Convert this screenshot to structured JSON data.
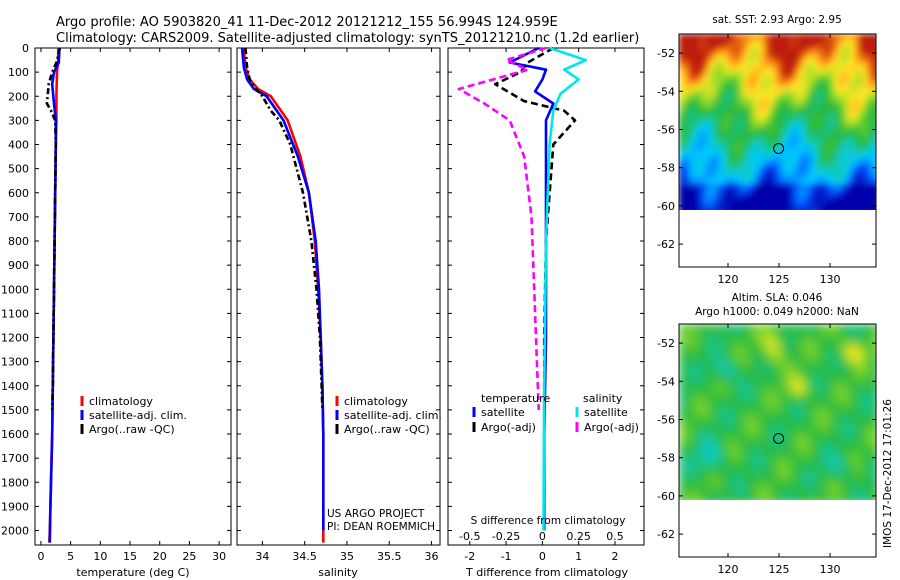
{
  "header": {
    "line1": "Argo profile: AO 5903820_41 11-Dec-2012 20121212_155 56.994S 124.959E",
    "line2": "Climatology: CARS2009. Satellite-adjusted climatology: synTS_20121210.nc (1.2d earlier)"
  },
  "credits": {
    "line1": "US ARGO PROJECT",
    "line2": "PI: DEAN ROEMMICH"
  },
  "stamp": "IMOS 17-Dec-2012 17:01:26",
  "colors": {
    "climatology": "#ff0000",
    "satellite": "#0000ff",
    "argo": "#000000",
    "satellite_s": "#00e5ee",
    "argo_s": "#ff00ff"
  },
  "chart_data": [
    {
      "type": "line",
      "name_key": "temperature",
      "xlabel": "temperature (deg C)",
      "xlim": [
        -1,
        32
      ],
      "ylim": [
        2060,
        0
      ],
      "xticks": [
        0,
        5,
        10,
        15,
        20,
        25,
        30
      ],
      "yticks": [
        0,
        100,
        200,
        300,
        400,
        500,
        600,
        700,
        800,
        900,
        1000,
        1100,
        1200,
        1300,
        1400,
        1500,
        1600,
        1700,
        1800,
        1900,
        2000
      ],
      "legend": {
        "placement": "lower-center",
        "entries": [
          "climatology",
          "satellite-adj. clim.",
          "Argo(..raw -QC)"
        ]
      },
      "series": [
        {
          "name": "climatology",
          "color": "#ff0000",
          "dash": "",
          "x": [
            2.9,
            2.9,
            2.7,
            2.6,
            2.6,
            2.5,
            2.4,
            2.3,
            2.2,
            2.1,
            2.0,
            1.9,
            1.8,
            1.7,
            1.6,
            1.5,
            1.4
          ],
          "y": [
            0,
            50,
            100,
            200,
            300,
            400,
            600,
            800,
            1000,
            1200,
            1400,
            1600,
            1700,
            1800,
            1900,
            2000,
            2050
          ]
        },
        {
          "name": "satellite-adj. clim.",
          "color": "#0000ff",
          "dash": "",
          "x": [
            3.1,
            3.0,
            2.2,
            1.9,
            2.2,
            2.5,
            2.5,
            2.4,
            2.3,
            2.2,
            2.1,
            2.0,
            1.9,
            1.8,
            1.7,
            1.6,
            1.5
          ],
          "y": [
            0,
            60,
            100,
            150,
            230,
            300,
            400,
            600,
            800,
            1000,
            1200,
            1400,
            1600,
            1700,
            1800,
            1900,
            2050
          ]
        },
        {
          "name": "Argo(..raw -QC)",
          "color": "#000000",
          "dash": "6,3,2,3",
          "x": [
            3.2,
            2.6,
            1.9,
            1.3,
            1.0,
            1.7,
            2.4,
            2.5,
            2.4,
            2.3,
            2.2,
            2.1,
            2.0,
            1.9
          ],
          "y": [
            0,
            60,
            100,
            150,
            230,
            260,
            300,
            400,
            600,
            800,
            1000,
            1200,
            1400,
            1500
          ]
        }
      ]
    },
    {
      "type": "line",
      "name_key": "salinity",
      "xlabel": "salinity",
      "xlim": [
        33.7,
        36.1
      ],
      "ylim": [
        2060,
        0
      ],
      "xticks": [
        34,
        34.5,
        35,
        35.5,
        36
      ],
      "legend": {
        "placement": "lower-center",
        "entries": [
          "climatology",
          "satellite-adj. clim.",
          "Argo(..raw -QC)"
        ]
      },
      "series": [
        {
          "name": "climatology",
          "color": "#ff0000",
          "dash": "",
          "x": [
            33.78,
            33.8,
            33.85,
            33.95,
            34.1,
            34.3,
            34.45,
            34.55,
            34.62,
            34.66,
            34.69,
            34.71,
            34.72,
            34.72,
            34.72,
            34.72,
            34.72
          ],
          "y": [
            0,
            80,
            130,
            170,
            200,
            300,
            450,
            600,
            800,
            1000,
            1200,
            1400,
            1600,
            1800,
            1900,
            2000,
            2050
          ]
        },
        {
          "name": "satellite-adj. clim.",
          "color": "#0000ff",
          "dash": "",
          "x": [
            33.76,
            33.78,
            33.82,
            33.9,
            34.05,
            34.25,
            34.42,
            34.55,
            34.63,
            34.67,
            34.69,
            34.71,
            34.72,
            34.72,
            34.72,
            34.72
          ],
          "y": [
            0,
            80,
            130,
            170,
            200,
            300,
            450,
            600,
            800,
            1000,
            1200,
            1400,
            1600,
            1800,
            1900,
            2000
          ]
        },
        {
          "name": "Argo(..raw -QC)",
          "color": "#000000",
          "dash": "6,3,2,3",
          "x": [
            33.8,
            33.82,
            33.85,
            33.9,
            34.0,
            34.1,
            34.2,
            34.33,
            34.48,
            34.58,
            34.64,
            34.68,
            34.7,
            34.71
          ],
          "y": [
            0,
            80,
            130,
            160,
            200,
            260,
            300,
            400,
            600,
            800,
            1000,
            1200,
            1400,
            1500
          ]
        }
      ]
    },
    {
      "type": "line",
      "name_key": "difference",
      "xlabel": "T difference from climatology",
      "xlabel_top": "S difference from climatology",
      "xlim": [
        -2.6,
        2.8
      ],
      "ylim": [
        2060,
        0
      ],
      "xticks": [
        -2,
        -1,
        0,
        1,
        2
      ],
      "xticks_s_labels": [
        "-0.5",
        "-0.25",
        "0",
        "0.25",
        "0.5"
      ],
      "legend": {
        "placement": "lower-center",
        "headers": [
          "temperature",
          "salinity"
        ],
        "entries": [
          "satellite",
          "Argo(-adj)",
          "satellite",
          "Argo(-adj)"
        ]
      },
      "series": [
        {
          "name": "temperature satellite",
          "color": "#0000ff",
          "dash": "",
          "x": [
            -0.1,
            -0.9,
            0.1,
            0.0,
            -0.2,
            0.3,
            0.1,
            0.1,
            0.1,
            0.1,
            0.05,
            0.05
          ],
          "y": [
            0,
            60,
            90,
            130,
            180,
            230,
            300,
            500,
            800,
            1200,
            1600,
            2000
          ]
        },
        {
          "name": "temperature Argo(-adj)",
          "color": "#000000",
          "dash": "7,4",
          "x": [
            0.3,
            -0.4,
            -0.6,
            -1.3,
            -0.5,
            0.6,
            0.9,
            0.3,
            0.1,
            0.05,
            0.05
          ],
          "y": [
            0,
            60,
            100,
            150,
            220,
            260,
            300,
            400,
            800,
            1200,
            1500
          ]
        },
        {
          "name": "salinity satellite",
          "color": "#00e5ee",
          "dash": "",
          "x": [
            0.2,
            1.2,
            0.6,
            1.0,
            0.5,
            0.3,
            0.2,
            0.1,
            0.05,
            0.03
          ],
          "y": [
            0,
            50,
            90,
            130,
            190,
            260,
            400,
            800,
            1400,
            2000
          ]
        },
        {
          "name": "salinity Argo(-adj)",
          "color": "#ff00ff",
          "dash": "7,4",
          "x": [
            0.1,
            -1.0,
            -0.4,
            -2.3,
            -1.6,
            -0.9,
            -0.5,
            -0.3,
            -0.2,
            -0.1
          ],
          "y": [
            0,
            50,
            90,
            170,
            230,
            300,
            450,
            700,
            1100,
            1500
          ]
        }
      ]
    },
    {
      "type": "heatmap",
      "name_key": "sst_map",
      "title": "sat. SST: 2.93 Argo: 2.95",
      "xlim": [
        115.2,
        134.5
      ],
      "ylim": [
        -63.2,
        -51
      ],
      "xticks": [
        120,
        125,
        130
      ],
      "yticks": [
        -52,
        -54,
        -56,
        -58,
        -60,
        -62
      ],
      "argo_position": {
        "lon": 124.959,
        "lat": -56.994
      }
    },
    {
      "type": "heatmap",
      "name_key": "sla_map",
      "title_line1": "Altim. SLA: 0.046",
      "title_line2": "Argo h1000: 0.049 h2000: NaN",
      "xlim": [
        115.2,
        134.5
      ],
      "ylim": [
        -63.2,
        -51
      ],
      "xticks": [
        120,
        125,
        130
      ],
      "yticks": [
        -52,
        -54,
        -56,
        -58,
        -60,
        -62
      ],
      "argo_position": {
        "lon": 124.959,
        "lat": -56.994
      }
    }
  ]
}
